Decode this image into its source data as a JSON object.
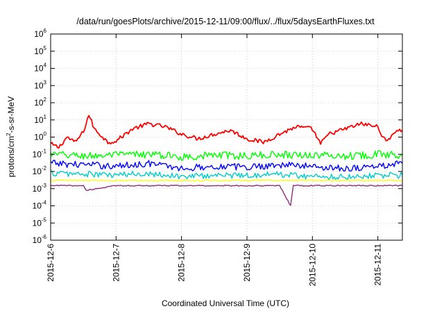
{
  "chart_data": {
    "type": "line",
    "title": "/data/run/goesPlots/archive/2015-12-11/09:00/flux/../flux/5daysEarthFluxes.txt",
    "xlabel": "Coordinated Universal Time (UTC)",
    "ylabel": {
      "base": "protons/cm",
      "sup": "2",
      "rest": "-s-sr-MeV"
    },
    "yscale": "log",
    "ylim": [
      1e-06,
      1000000.0
    ],
    "xlim": [
      "2015-12-06T00:00",
      "2015-12-11T09:00"
    ],
    "grid": true,
    "legend": "none",
    "y_ticks": [
      {
        "exp": "-6",
        "value": 1e-06
      },
      {
        "exp": "-5",
        "value": 1e-05
      },
      {
        "exp": "-4",
        "value": 0.0001
      },
      {
        "exp": "-3",
        "value": 0.001
      },
      {
        "exp": "-2",
        "value": 0.01
      },
      {
        "exp": "-1",
        "value": 0.1
      },
      {
        "exp": "0",
        "value": 1
      },
      {
        "exp": "1",
        "value": 10.0
      },
      {
        "exp": "2",
        "value": 100.0
      },
      {
        "exp": "3",
        "value": 1000.0
      },
      {
        "exp": "4",
        "value": 10000.0
      },
      {
        "exp": "5",
        "value": 100000.0
      },
      {
        "exp": "6",
        "value": 1000000.0
      }
    ],
    "y_tick_base": "10",
    "x_ticks": [
      "2015-12-6",
      "2015-12-7",
      "2015-12-8",
      "2015-12-9",
      "2015-12-10",
      "2015-12-11"
    ],
    "series": [
      {
        "color": "#ff0000",
        "x": [
          "2015-12-06T00:00",
          "2015-12-06T03:00",
          "2015-12-06T06:00",
          "2015-12-06T09:00",
          "2015-12-06T12:00",
          "2015-12-06T14:00",
          "2015-12-06T15:00",
          "2015-12-06T16:00",
          "2015-12-06T18:00",
          "2015-12-06T21:00",
          "2015-12-07T00:00",
          "2015-12-07T06:00",
          "2015-12-07T12:00",
          "2015-12-07T18:00",
          "2015-12-08T00:00",
          "2015-12-08T06:00",
          "2015-12-08T12:00",
          "2015-12-08T18:00",
          "2015-12-09T00:00",
          "2015-12-09T06:00",
          "2015-12-09T12:00",
          "2015-12-09T18:00",
          "2015-12-10T00:00",
          "2015-12-10T03:00",
          "2015-12-10T06:00",
          "2015-12-10T12:00",
          "2015-12-10T18:00",
          "2015-12-11T00:00",
          "2015-12-11T03:00",
          "2015-12-11T06:00",
          "2015-12-11T09:00"
        ],
        "values": [
          0.4,
          0.25,
          1.0,
          0.5,
          2.0,
          20,
          8,
          3,
          1.5,
          0.5,
          0.6,
          3,
          6,
          4,
          1.5,
          0.8,
          1.5,
          2.5,
          0.8,
          0.5,
          1.5,
          4,
          3,
          0.4,
          1.5,
          3,
          6,
          4,
          0.5,
          2,
          2.5
        ]
      },
      {
        "color": "#00ff00",
        "x": [
          "2015-12-06T00:00",
          "2015-12-06T12:00",
          "2015-12-07T00:00",
          "2015-12-07T12:00",
          "2015-12-08T00:00",
          "2015-12-08T12:00",
          "2015-12-09T00:00",
          "2015-12-09T12:00",
          "2015-12-10T00:00",
          "2015-12-10T12:00",
          "2015-12-11T00:00",
          "2015-12-11T09:00"
        ],
        "values": [
          0.1,
          0.08,
          0.09,
          0.1,
          0.07,
          0.09,
          0.08,
          0.1,
          0.09,
          0.08,
          0.1,
          0.09
        ]
      },
      {
        "color": "#0000ff",
        "x": [
          "2015-12-06T00:00",
          "2015-12-06T12:00",
          "2015-12-07T00:00",
          "2015-12-07T12:00",
          "2015-12-08T00:00",
          "2015-12-08T12:00",
          "2015-12-09T00:00",
          "2015-12-09T12:00",
          "2015-12-10T00:00",
          "2015-12-10T12:00",
          "2015-12-11T00:00",
          "2015-12-11T09:00"
        ],
        "values": [
          0.03,
          0.025,
          0.02,
          0.03,
          0.015,
          0.02,
          0.018,
          0.025,
          0.02,
          0.015,
          0.02,
          0.03
        ]
      },
      {
        "color": "#00cccc",
        "x": [
          "2015-12-06T00:00",
          "2015-12-06T12:00",
          "2015-12-07T00:00",
          "2015-12-07T12:00",
          "2015-12-08T00:00",
          "2015-12-08T12:00",
          "2015-12-09T00:00",
          "2015-12-09T12:00",
          "2015-12-10T00:00",
          "2015-12-10T12:00",
          "2015-12-11T00:00",
          "2015-12-11T09:00"
        ],
        "values": [
          0.008,
          0.007,
          0.006,
          0.008,
          0.005,
          0.006,
          0.006,
          0.007,
          0.005,
          0.005,
          0.006,
          0.006
        ]
      },
      {
        "color": "#ffff00",
        "x": [
          "2015-12-06T00:00",
          "2015-12-06T12:00",
          "2015-12-07T00:00",
          "2015-12-07T12:00",
          "2015-12-08T00:00",
          "2015-12-08T12:00",
          "2015-12-09T00:00",
          "2015-12-09T12:00",
          "2015-12-10T00:00",
          "2015-12-10T12:00",
          "2015-12-11T00:00",
          "2015-12-11T09:00"
        ],
        "values": [
          0.003,
          0.003,
          0.003,
          0.003,
          0.003,
          0.003,
          0.003,
          0.003,
          0.003,
          0.003,
          0.003,
          0.003
        ]
      },
      {
        "color": "#8b2f7a",
        "x": [
          "2015-12-06T00:00",
          "2015-12-06T12:00",
          "2015-12-06T13:00",
          "2015-12-07T00:00",
          "2015-12-08T00:00",
          "2015-12-09T00:00",
          "2015-12-09T12:00",
          "2015-12-09T16:00",
          "2015-12-09T17:00",
          "2015-12-10T00:00",
          "2015-12-10T12:00",
          "2015-12-11T00:00",
          "2015-12-11T09:00"
        ],
        "values": [
          0.0015,
          0.0015,
          0.0008,
          0.0015,
          0.0015,
          0.0015,
          0.0015,
          0.0001,
          0.0015,
          0.0015,
          0.0015,
          0.0015,
          0.0015
        ]
      }
    ]
  }
}
